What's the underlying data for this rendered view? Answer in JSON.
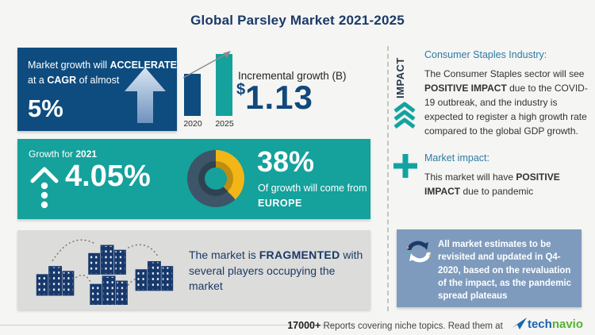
{
  "title": "Global Parsley Market 2021-2025",
  "colors": {
    "navy_box": "#0E4C7F",
    "teal": "#15A19C",
    "steel_box": "#7E9BBD",
    "gray_box": "#DCDCDA",
    "heading_blue": "#2E7CA5",
    "navy_text": "#1B3A68",
    "donut_slate": "#3D5568",
    "donut_yellow": "#F3B617",
    "logo_blue": "#1B64AE",
    "logo_green": "#54B32F"
  },
  "accelerate_box": {
    "line1_normal": "Market growth will ",
    "line1_bold": "ACCELERATE",
    "line2_pre": "at a ",
    "line2_bold": "CAGR",
    "line2_post": " of almost",
    "value": "5%"
  },
  "incremental": {
    "label": "Incremental growth (B)",
    "currency": "$",
    "value": "1.13"
  },
  "growth_box": {
    "label_pre": "Growth for ",
    "label_year": "2021",
    "value": "4.05%",
    "share_value": "38%",
    "share_line": "Of growth will come from",
    "share_region": "EUROPE"
  },
  "fragmented_box": {
    "pre": "The market is ",
    "bold": "FRAGMENTED",
    "post": " with several players occupying the market"
  },
  "impact": {
    "vertical_label": "IMPACT",
    "industry_heading": "Consumer Staples Industry:",
    "industry_pre": "The Consumer Staples sector will see ",
    "industry_bold": "POSITIVE IMPACT",
    "industry_post": " due to the COVID-19 outbreak, and the industry is expected to register a high growth rate compared to the global GDP growth.",
    "market_heading": "Market impact:",
    "market_pre": "This market will have ",
    "market_bold": "POSITIVE IMPACT",
    "market_post": " due to pandemic",
    "note": "All market estimates to be revisited and updated in Q4-2020, based on the revaluation of the impact, as the pandemic spread plateaus"
  },
  "footer": {
    "count": "17000+",
    "tagline": " Reports covering niche topics. Read them at ",
    "logo_part1": "tech",
    "logo_part2": "navio"
  },
  "chart_data": [
    {
      "type": "bar",
      "title": "Incremental growth (B)",
      "categories": [
        "2020",
        "2025"
      ],
      "values_relative": [
        0.68,
        1.0
      ],
      "annotation": "$1.13B incremental growth between 2020 and 2025",
      "colors": [
        "#0E4C7F",
        "#15A19C"
      ],
      "legend_position": "none",
      "grid": false
    },
    {
      "type": "pie",
      "title": "38% of growth will come from EUROPE",
      "slices": [
        {
          "label": "EUROPE",
          "value": 38,
          "color": "#F3B617"
        },
        {
          "label": "Rest of world",
          "value": 62,
          "color": "#3D5568"
        }
      ],
      "donut": true,
      "legend_position": "none"
    }
  ]
}
